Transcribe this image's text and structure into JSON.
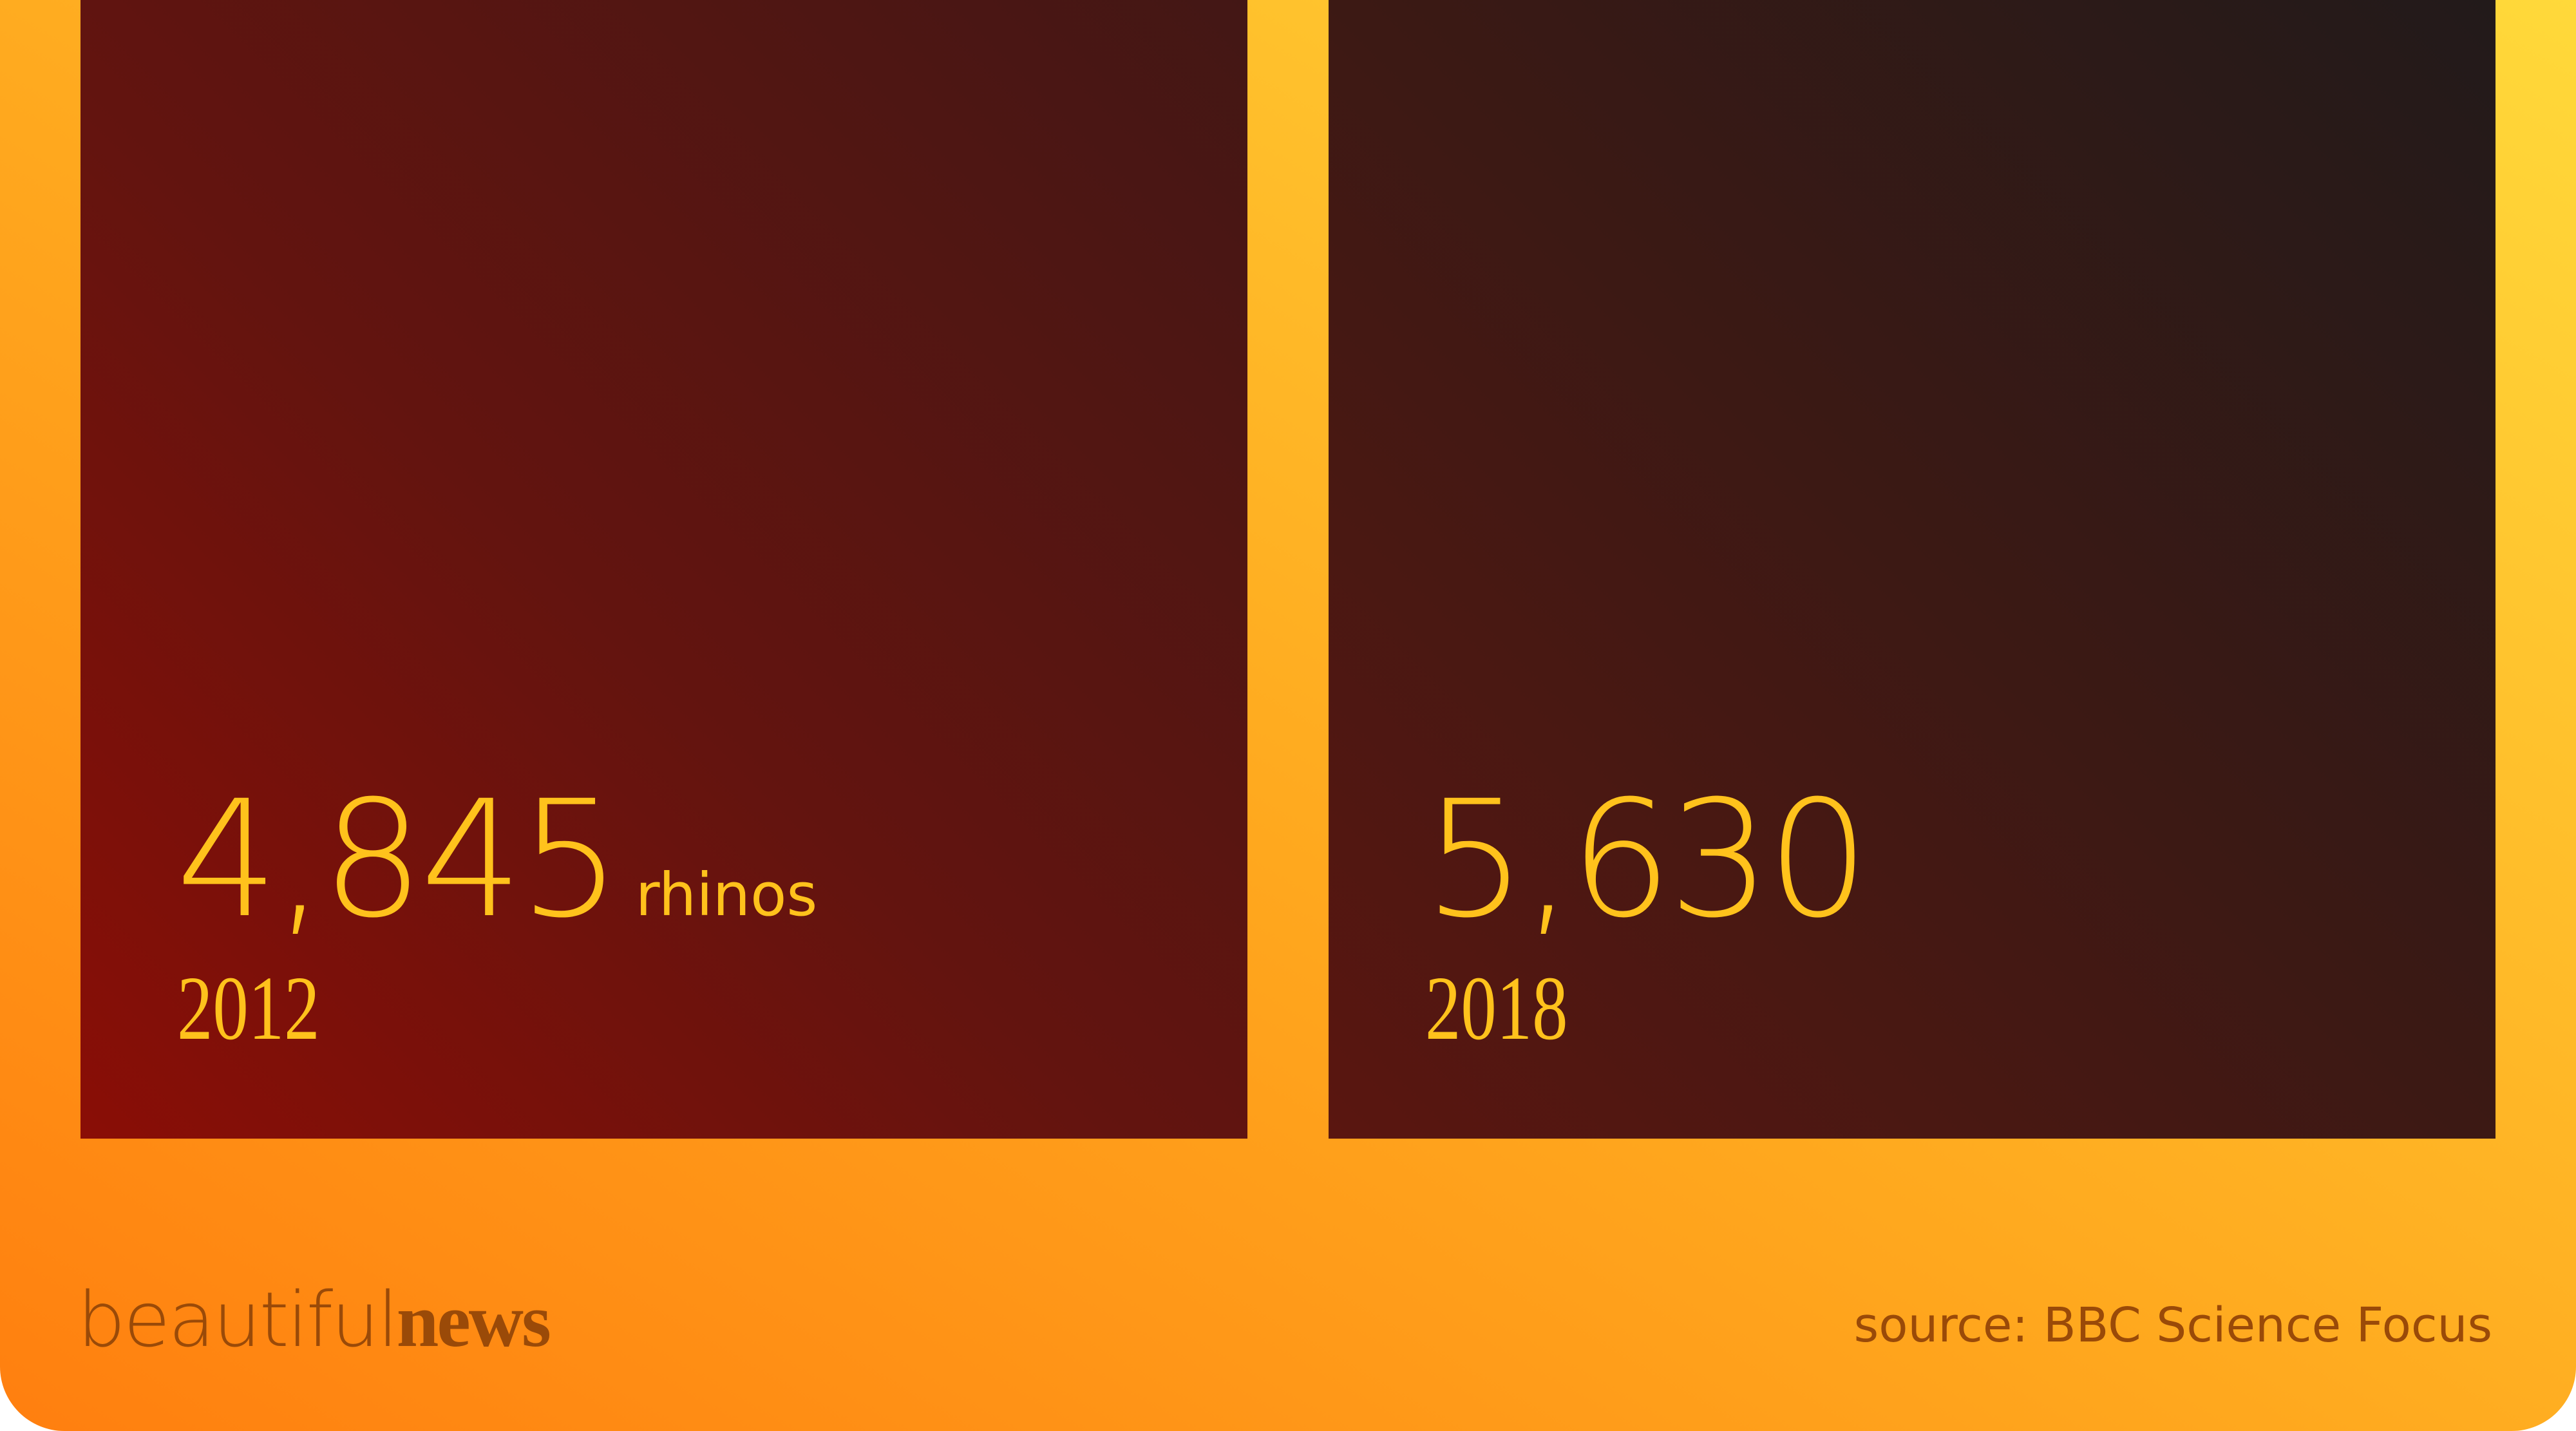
{
  "colors": {
    "accent_text": "#ffc21c",
    "brand_text": "#9a4a08",
    "background_gradient": [
      "#ff7f0f",
      "#ffd93a"
    ],
    "panel_left_gradient": [
      "#8a0e06",
      "#431715"
    ],
    "panel_right_gradient": [
      "#5a1610",
      "#221a1a"
    ]
  },
  "chart_data": {
    "type": "bar",
    "categories": [
      "2012",
      "2018"
    ],
    "values": [
      4845,
      5630
    ],
    "value_labels": [
      "4,845",
      "5,630"
    ],
    "unit_label": "rhinos",
    "source": "source: BBC Science Focus"
  },
  "brand": {
    "part1": "beautiful",
    "part2": "news"
  }
}
